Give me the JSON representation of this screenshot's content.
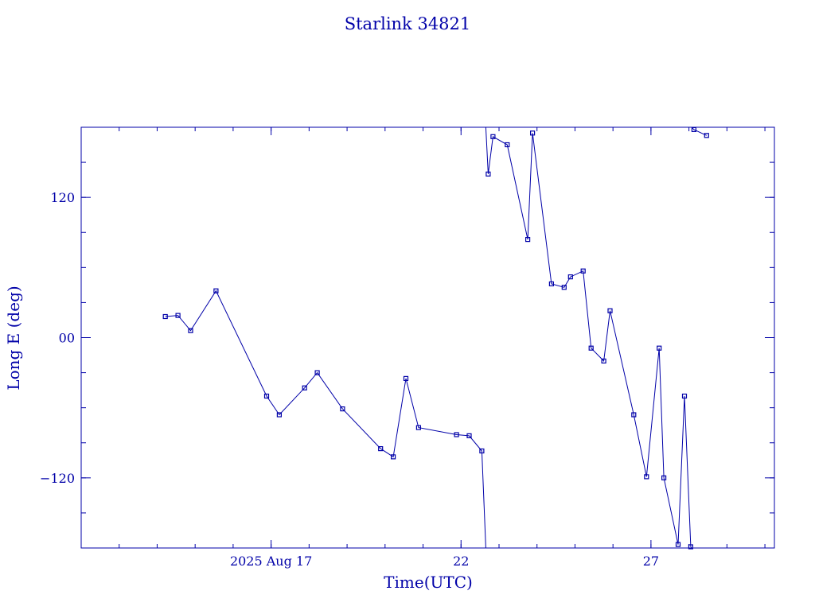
{
  "chart_data": {
    "type": "line",
    "title": "Starlink 34821",
    "xlabel": "Time(UTC)",
    "ylabel": "Long E (deg)",
    "xlim": [
      "2025-08-12",
      "2025-08-30.25"
    ],
    "ylim": [
      -180,
      180
    ],
    "x_ticks": [
      {
        "x": "2025-08-17",
        "label": "2025 Aug 17"
      },
      {
        "x": "2025-08-22",
        "label": "22"
      },
      {
        "x": "2025-08-27",
        "label": "27"
      }
    ],
    "y_ticks": [
      {
        "y": 120,
        "label": "120"
      },
      {
        "y": 0,
        "label": "00"
      },
      {
        "y": -120,
        "label": "−120"
      }
    ],
    "grid": false,
    "legend": "none",
    "line_color": "#0000a8",
    "series": [
      {
        "points": [
          {
            "x": "2025-08-14T05:10",
            "y": 18
          },
          {
            "x": "2025-08-14T13:10",
            "y": 19
          },
          {
            "x": "2025-08-14T21:10",
            "y": 6
          },
          {
            "x": "2025-08-15T13:10",
            "y": 40
          },
          {
            "x": "2025-08-16T21:10",
            "y": -50
          },
          {
            "x": "2025-08-17T05:10",
            "y": -66
          },
          {
            "x": "2025-08-17T21:10",
            "y": -43
          },
          {
            "x": "2025-08-18T05:10",
            "y": -30
          },
          {
            "x": "2025-08-18T21:10",
            "y": -61
          },
          {
            "x": "2025-08-19T21:10",
            "y": -95
          },
          {
            "x": "2025-08-20T05:10",
            "y": -102
          },
          {
            "x": "2025-08-20T13:10",
            "y": -35
          },
          {
            "x": "2025-08-20T21:10",
            "y": -77
          },
          {
            "x": "2025-08-21T21:10",
            "y": -83
          },
          {
            "x": "2025-08-22T05:10",
            "y": -84
          },
          {
            "x": "2025-08-22T13:10",
            "y": -97
          },
          {
            "x": "2025-08-22T15:40",
            "y": -180
          },
          {
            "x": "2025-08-22T15:40",
            "y": 180,
            "break": true
          },
          {
            "x": "2025-08-22T17:10",
            "y": 140
          },
          {
            "x": "2025-08-22T20:10",
            "y": 172
          },
          {
            "x": "2025-08-23T05:10",
            "y": 165
          },
          {
            "x": "2025-08-23T18:10",
            "y": 84
          },
          {
            "x": "2025-08-23T21:10",
            "y": 175
          },
          {
            "x": "2025-08-24T09:10",
            "y": 46
          },
          {
            "x": "2025-08-24T17:10",
            "y": 43
          },
          {
            "x": "2025-08-24T21:10",
            "y": 52
          },
          {
            "x": "2025-08-25T05:10",
            "y": 57
          },
          {
            "x": "2025-08-25T10:10",
            "y": -9
          },
          {
            "x": "2025-08-25T18:10",
            "y": -20
          },
          {
            "x": "2025-08-25T22:10",
            "y": 23
          },
          {
            "x": "2025-08-26T13:10",
            "y": -66
          },
          {
            "x": "2025-08-26T21:10",
            "y": -119
          },
          {
            "x": "2025-08-27T05:10",
            "y": -9
          },
          {
            "x": "2025-08-27T08:10",
            "y": -120
          },
          {
            "x": "2025-08-27T17:10",
            "y": -177
          },
          {
            "x": "2025-08-27T21:10",
            "y": -50
          },
          {
            "x": "2025-08-28T01:10",
            "y": -179
          },
          {
            "x": "2025-08-28T01:40",
            "y": -180
          },
          {
            "x": "2025-08-28T01:40",
            "y": 180,
            "break": true
          },
          {
            "x": "2025-08-28T03:10",
            "y": 178
          },
          {
            "x": "2025-08-28T11:10",
            "y": 173
          }
        ]
      }
    ]
  }
}
